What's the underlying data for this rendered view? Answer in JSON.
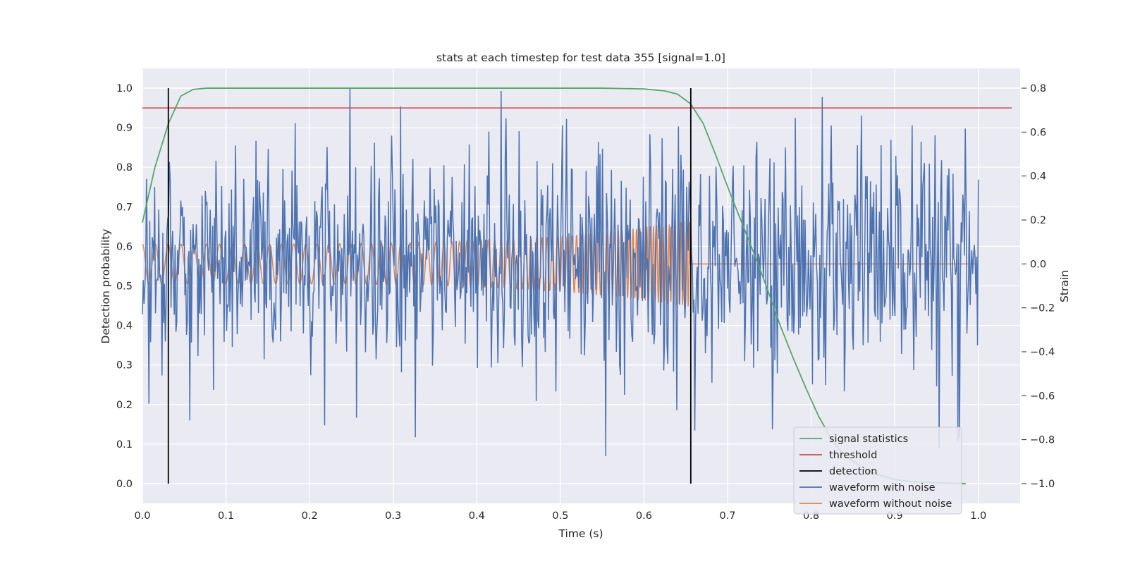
{
  "chart_data": {
    "type": "line",
    "title": "stats at each timestep for test data 355 [signal=1.0]",
    "xlabel": "Time (s)",
    "ylabel": "Detection probability",
    "y2label": "Strain",
    "xlim": [
      0.0,
      1.05
    ],
    "ylim": [
      -0.05,
      1.05
    ],
    "y2lim": [
      -1.09,
      0.89
    ],
    "xticks": [
      0.0,
      0.1,
      0.2,
      0.3,
      0.4,
      0.5,
      0.6,
      0.7,
      0.8,
      0.9,
      1.0
    ],
    "xtick_labels": [
      "0.0",
      "0.1",
      "0.2",
      "0.3",
      "0.4",
      "0.5",
      "0.6",
      "0.7",
      "0.8",
      "0.9",
      "1.0"
    ],
    "yticks": [
      0.0,
      0.1,
      0.2,
      0.3,
      0.4,
      0.5,
      0.6,
      0.7,
      0.8,
      0.9,
      1.0
    ],
    "ytick_labels": [
      "0.0",
      "0.1",
      "0.2",
      "0.3",
      "0.4",
      "0.5",
      "0.6",
      "0.7",
      "0.8",
      "0.9",
      "1.0"
    ],
    "y2ticks": [
      -1.0,
      -0.8,
      -0.6,
      -0.4,
      -0.2,
      0.0,
      0.2,
      0.4,
      0.6,
      0.8
    ],
    "y2tick_labels": [
      "−1.0",
      "−0.8",
      "−0.6",
      "−0.4",
      "−0.2",
      "0.0",
      "0.2",
      "0.4",
      "0.6",
      "0.8"
    ],
    "grid": true,
    "legend_position": "lower-right",
    "legend": [
      {
        "label": "signal statistics",
        "color": "#55a868"
      },
      {
        "label": "threshold",
        "color": "#c44e52"
      },
      {
        "label": "detection",
        "color": "#000000"
      },
      {
        "label": "waveform with noise",
        "color": "#4c72b0"
      },
      {
        "label": "waveform without noise",
        "color": "#dd8452"
      }
    ],
    "signal_statistics": {
      "axis": "left",
      "color": "#55a868",
      "x": [
        0.0,
        0.015,
        0.031,
        0.046,
        0.061,
        0.077,
        0.092,
        0.2,
        0.4,
        0.55,
        0.6,
        0.625,
        0.64,
        0.656,
        0.671,
        0.686,
        0.702,
        0.717,
        0.732,
        0.748,
        0.763,
        0.778,
        0.794,
        0.809,
        0.825,
        0.84,
        0.855,
        0.87,
        0.885,
        0.9,
        0.92,
        0.95,
        0.985
      ],
      "y": [
        0.66,
        0.8,
        0.91,
        0.98,
        0.997,
        1.0,
        1.0,
        1.0,
        1.0,
        1.0,
        0.998,
        0.993,
        0.985,
        0.96,
        0.91,
        0.83,
        0.74,
        0.66,
        0.58,
        0.49,
        0.4,
        0.32,
        0.24,
        0.17,
        0.11,
        0.07,
        0.05,
        0.03,
        0.02,
        0.01,
        0.005,
        0.002,
        0.0
      ]
    },
    "threshold": {
      "axis": "left",
      "color": "#c44e52",
      "y": 0.95,
      "x_range": [
        0.0,
        1.04
      ]
    },
    "detection": {
      "axis": "left",
      "color": "#000000",
      "x": [
        0.031,
        0.656
      ],
      "y_range": [
        0.0,
        1.0
      ]
    },
    "waveform_with_noise": {
      "axis": "right",
      "color": "#4c72b0",
      "x_range": [
        0.0,
        1.0
      ],
      "samples": 1024,
      "approx_std": 0.25,
      "approx_range": [
        -1.0,
        0.8
      ]
    },
    "waveform_without_noise": {
      "axis": "right",
      "color": "#dd8452",
      "type": "chirp",
      "start_amplitude": 0.09,
      "end_amplitude": 0.2,
      "start_frequency_hz": 65,
      "end_frequency_hz": 300,
      "merger_time": 0.655,
      "post_merger_value": 0.0
    }
  }
}
